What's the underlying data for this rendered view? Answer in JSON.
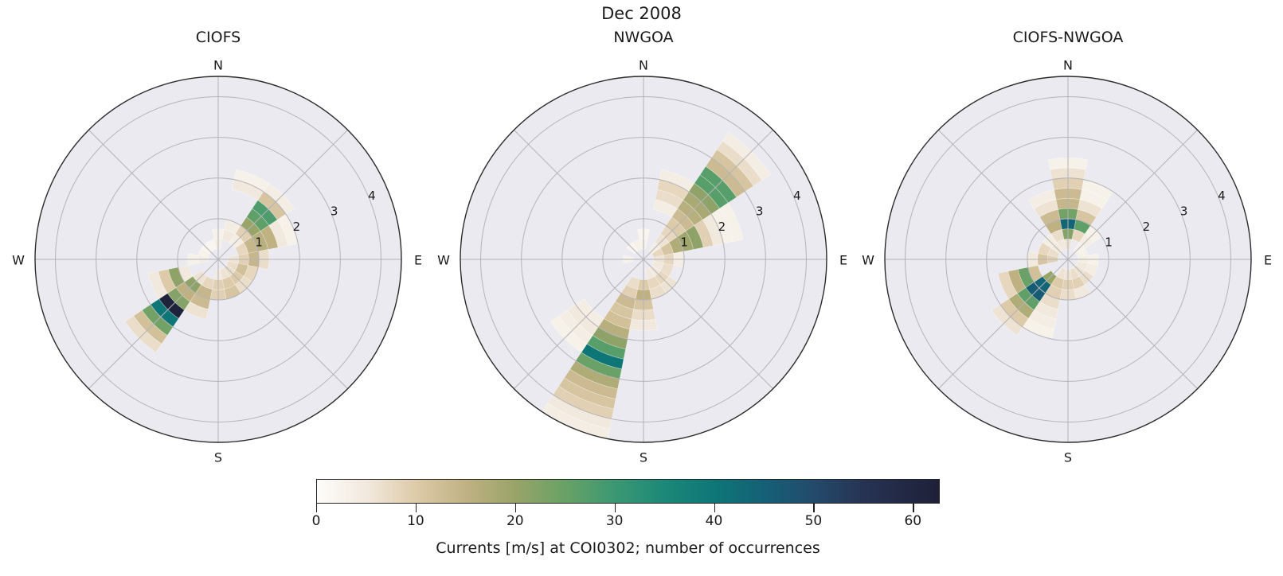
{
  "figure": {
    "suptitle": "Dec 2008",
    "background": "#ffffff",
    "axes_background": "#eaeaf0",
    "grid_color": "#b3b3b8",
    "spine_color": "#2b2b2b",
    "text_color": "#1a1a1a"
  },
  "chart_data": [
    {
      "type": "polar_histogram",
      "title": "CIOFS",
      "compass": [
        "N",
        "E",
        "S",
        "W"
      ],
      "radial_ticks": [
        1,
        2,
        3,
        4
      ],
      "rmax": 4.5,
      "sector_width_deg": 22.5,
      "radial_bin_width": 0.25,
      "angle_convention": "compass degrees, 0=N, clockwise",
      "radius_meaning": "current speed [m/s]",
      "color_meaning": "number of occurrences",
      "segments": [
        [
          0,
          0.25,
          4
        ],
        [
          0,
          0.5,
          3
        ],
        [
          22.5,
          0.5,
          5
        ],
        [
          22.5,
          0.75,
          4
        ],
        [
          22.5,
          1.75,
          5
        ],
        [
          22.5,
          2.0,
          3
        ],
        [
          45,
          0.5,
          4
        ],
        [
          45,
          0.75,
          9
        ],
        [
          45,
          1.0,
          20
        ],
        [
          45,
          1.25,
          26
        ],
        [
          45,
          1.5,
          28
        ],
        [
          45,
          1.75,
          11
        ],
        [
          45,
          2.0,
          4
        ],
        [
          67.5,
          0.5,
          8
        ],
        [
          67.5,
          0.75,
          14
        ],
        [
          67.5,
          1.0,
          16
        ],
        [
          67.5,
          1.25,
          15
        ],
        [
          67.5,
          1.5,
          5
        ],
        [
          67.5,
          1.75,
          3
        ],
        [
          90,
          0.25,
          6
        ],
        [
          90,
          0.5,
          9
        ],
        [
          90,
          0.75,
          14
        ],
        [
          90,
          1.0,
          7
        ],
        [
          112.5,
          0.25,
          7
        ],
        [
          112.5,
          0.5,
          12
        ],
        [
          112.5,
          0.75,
          8
        ],
        [
          135,
          0.25,
          7
        ],
        [
          135,
          0.5,
          10
        ],
        [
          135,
          0.75,
          7
        ],
        [
          157.5,
          0.25,
          6
        ],
        [
          157.5,
          0.5,
          10
        ],
        [
          157.5,
          0.75,
          11
        ],
        [
          180,
          0.25,
          5
        ],
        [
          180,
          0.5,
          9
        ],
        [
          180,
          0.75,
          9
        ],
        [
          202.5,
          0.5,
          8
        ],
        [
          202.5,
          0.75,
          14
        ],
        [
          202.5,
          1.0,
          13
        ],
        [
          202.5,
          1.25,
          6
        ],
        [
          225,
          0.5,
          6
        ],
        [
          225,
          0.75,
          21
        ],
        [
          225,
          1.0,
          15
        ],
        [
          225,
          1.25,
          22
        ],
        [
          225,
          1.5,
          62
        ],
        [
          225,
          1.75,
          40
        ],
        [
          225,
          2.0,
          24
        ],
        [
          225,
          2.25,
          12
        ],
        [
          225,
          2.5,
          7
        ],
        [
          247.5,
          0.75,
          5
        ],
        [
          247.5,
          1.0,
          21
        ],
        [
          247.5,
          1.25,
          10
        ],
        [
          247.5,
          1.5,
          5
        ],
        [
          270,
          0.25,
          4
        ],
        [
          270,
          0.5,
          3
        ],
        [
          292.5,
          0.25,
          3
        ],
        [
          315,
          0.25,
          2
        ],
        [
          337.5,
          0.25,
          2
        ]
      ]
    },
    {
      "type": "polar_histogram",
      "title": "NWGOA",
      "compass": [
        "N",
        "E",
        "S",
        "W"
      ],
      "radial_ticks": [
        1,
        2,
        3,
        4
      ],
      "rmax": 4.5,
      "sector_width_deg": 22.5,
      "radial_bin_width": 0.25,
      "angle_convention": "compass degrees, 0=N, clockwise",
      "radius_meaning": "current speed [m/s]",
      "color_meaning": "number of occurrences",
      "segments": [
        [
          0,
          0.25,
          3
        ],
        [
          0,
          0.5,
          2
        ],
        [
          22.5,
          1.25,
          4
        ],
        [
          22.5,
          1.5,
          7
        ],
        [
          22.5,
          1.75,
          8
        ],
        [
          22.5,
          2.0,
          4
        ],
        [
          45,
          0.25,
          4
        ],
        [
          45,
          0.5,
          6
        ],
        [
          45,
          0.75,
          8
        ],
        [
          45,
          1.0,
          10
        ],
        [
          45,
          1.25,
          13
        ],
        [
          45,
          1.5,
          16
        ],
        [
          45,
          1.75,
          18
        ],
        [
          45,
          2.0,
          21
        ],
        [
          45,
          2.25,
          27
        ],
        [
          45,
          2.5,
          27
        ],
        [
          45,
          2.75,
          13
        ],
        [
          45,
          3.0,
          11
        ],
        [
          45,
          3.25,
          7
        ],
        [
          45,
          3.5,
          4
        ],
        [
          67.5,
          0.25,
          8
        ],
        [
          67.5,
          0.5,
          11
        ],
        [
          67.5,
          0.75,
          17
        ],
        [
          67.5,
          1.0,
          19
        ],
        [
          67.5,
          1.25,
          21
        ],
        [
          67.5,
          1.5,
          9
        ],
        [
          67.5,
          1.75,
          5
        ],
        [
          67.5,
          2.0,
          3
        ],
        [
          67.5,
          2.25,
          3
        ],
        [
          90,
          0.25,
          6
        ],
        [
          90,
          0.5,
          8
        ],
        [
          90,
          0.75,
          4
        ],
        [
          112.5,
          0.25,
          5
        ],
        [
          112.5,
          0.5,
          7
        ],
        [
          135,
          0.25,
          5
        ],
        [
          135,
          0.5,
          8
        ],
        [
          135,
          0.75,
          6
        ],
        [
          157.5,
          0.25,
          5
        ],
        [
          157.5,
          0.5,
          8
        ],
        [
          157.5,
          0.75,
          7
        ],
        [
          180,
          0.5,
          10
        ],
        [
          180,
          0.75,
          15
        ],
        [
          180,
          1.0,
          11
        ],
        [
          180,
          1.25,
          7
        ],
        [
          180,
          1.5,
          5
        ],
        [
          202.5,
          0.5,
          7
        ],
        [
          202.5,
          0.75,
          9
        ],
        [
          202.5,
          1.0,
          13
        ],
        [
          202.5,
          1.25,
          11
        ],
        [
          202.5,
          1.5,
          12
        ],
        [
          202.5,
          1.75,
          16
        ],
        [
          202.5,
          2.0,
          21
        ],
        [
          202.5,
          2.25,
          27
        ],
        [
          202.5,
          2.5,
          40
        ],
        [
          202.5,
          2.75,
          25
        ],
        [
          202.5,
          3.0,
          17
        ],
        [
          202.5,
          3.25,
          13
        ],
        [
          202.5,
          3.5,
          11
        ],
        [
          202.5,
          3.75,
          9
        ],
        [
          202.5,
          4.0,
          5
        ],
        [
          202.5,
          4.25,
          4
        ],
        [
          225,
          1.75,
          4
        ],
        [
          225,
          2.0,
          5
        ],
        [
          225,
          2.25,
          4
        ],
        [
          225,
          2.5,
          3
        ],
        [
          270,
          0.25,
          3
        ],
        [
          315,
          0.25,
          2
        ],
        [
          337.5,
          0.25,
          3
        ]
      ]
    },
    {
      "type": "polar_histogram",
      "title": "CIOFS-NWGOA",
      "compass": [
        "N",
        "E",
        "S",
        "W"
      ],
      "radial_ticks": [
        1,
        2,
        3,
        4
      ],
      "rmax": 4.5,
      "sector_width_deg": 22.5,
      "radial_bin_width": 0.25,
      "angle_convention": "compass degrees, 0=N, clockwise",
      "radius_meaning": "current speed [m/s]",
      "color_meaning": "number of occurrences",
      "segments": [
        [
          337.5,
          0.25,
          5
        ],
        [
          337.5,
          0.5,
          7
        ],
        [
          337.5,
          0.75,
          15
        ],
        [
          337.5,
          1.0,
          13
        ],
        [
          337.5,
          1.25,
          6
        ],
        [
          337.5,
          1.5,
          4
        ],
        [
          0,
          0.25,
          6
        ],
        [
          0,
          0.5,
          22
        ],
        [
          0,
          0.75,
          44
        ],
        [
          0,
          1.0,
          24
        ],
        [
          0,
          1.25,
          14
        ],
        [
          0,
          1.5,
          13
        ],
        [
          0,
          1.75,
          9
        ],
        [
          0,
          2.0,
          6
        ],
        [
          0,
          2.25,
          3
        ],
        [
          22.5,
          0.5,
          8
        ],
        [
          22.5,
          0.75,
          26
        ],
        [
          22.5,
          1.0,
          11
        ],
        [
          22.5,
          1.25,
          6
        ],
        [
          22.5,
          1.5,
          3
        ],
        [
          22.5,
          1.75,
          3
        ],
        [
          45,
          0.25,
          3
        ],
        [
          45,
          0.5,
          4
        ],
        [
          45,
          0.75,
          3
        ],
        [
          67.5,
          0.25,
          3
        ],
        [
          90,
          0.25,
          4
        ],
        [
          90,
          0.5,
          3
        ],
        [
          112.5,
          0.25,
          5
        ],
        [
          112.5,
          0.5,
          4
        ],
        [
          135,
          0.25,
          6
        ],
        [
          135,
          0.5,
          7
        ],
        [
          157.5,
          0.25,
          7
        ],
        [
          157.5,
          0.5,
          9
        ],
        [
          157.5,
          0.75,
          5
        ],
        [
          180,
          0.25,
          6
        ],
        [
          180,
          0.5,
          9
        ],
        [
          180,
          0.75,
          7
        ],
        [
          202.5,
          0.25,
          6
        ],
        [
          202.5,
          0.5,
          10
        ],
        [
          202.5,
          0.75,
          9
        ],
        [
          202.5,
          1.0,
          7
        ],
        [
          202.5,
          1.25,
          5
        ],
        [
          202.5,
          1.5,
          4
        ],
        [
          202.5,
          1.75,
          3
        ],
        [
          225,
          0.5,
          20
        ],
        [
          225,
          0.75,
          44
        ],
        [
          225,
          1.0,
          46
        ],
        [
          225,
          1.25,
          26
        ],
        [
          225,
          1.5,
          17
        ],
        [
          225,
          1.75,
          10
        ],
        [
          225,
          2.0,
          6
        ],
        [
          247.5,
          0.75,
          12
        ],
        [
          247.5,
          1.0,
          25
        ],
        [
          247.5,
          1.25,
          15
        ],
        [
          247.5,
          1.5,
          8
        ],
        [
          270,
          0.25,
          9
        ],
        [
          270,
          0.5,
          11
        ],
        [
          270,
          0.75,
          5
        ],
        [
          292.5,
          0.25,
          7
        ],
        [
          292.5,
          0.5,
          8
        ],
        [
          315,
          0.25,
          5
        ],
        [
          315,
          0.5,
          4
        ]
      ]
    }
  ],
  "colorbar": {
    "label": "Currents [m/s] at COI0302; number of occurrences",
    "ticks": [
      0,
      10,
      20,
      30,
      40,
      50,
      60
    ],
    "vmin": 0,
    "vmax": 62.7,
    "stops": [
      [
        0.0,
        "#fdfcfa"
      ],
      [
        0.08,
        "#f2e9de"
      ],
      [
        0.16,
        "#ddcaa8"
      ],
      [
        0.24,
        "#c0b183"
      ],
      [
        0.32,
        "#98a468"
      ],
      [
        0.4,
        "#68a166"
      ],
      [
        0.48,
        "#3b9873"
      ],
      [
        0.56,
        "#1b8878"
      ],
      [
        0.64,
        "#0e7677"
      ],
      [
        0.72,
        "#156076"
      ],
      [
        0.8,
        "#234a6b"
      ],
      [
        0.88,
        "#273353"
      ],
      [
        1.0,
        "#1e2038"
      ]
    ]
  }
}
